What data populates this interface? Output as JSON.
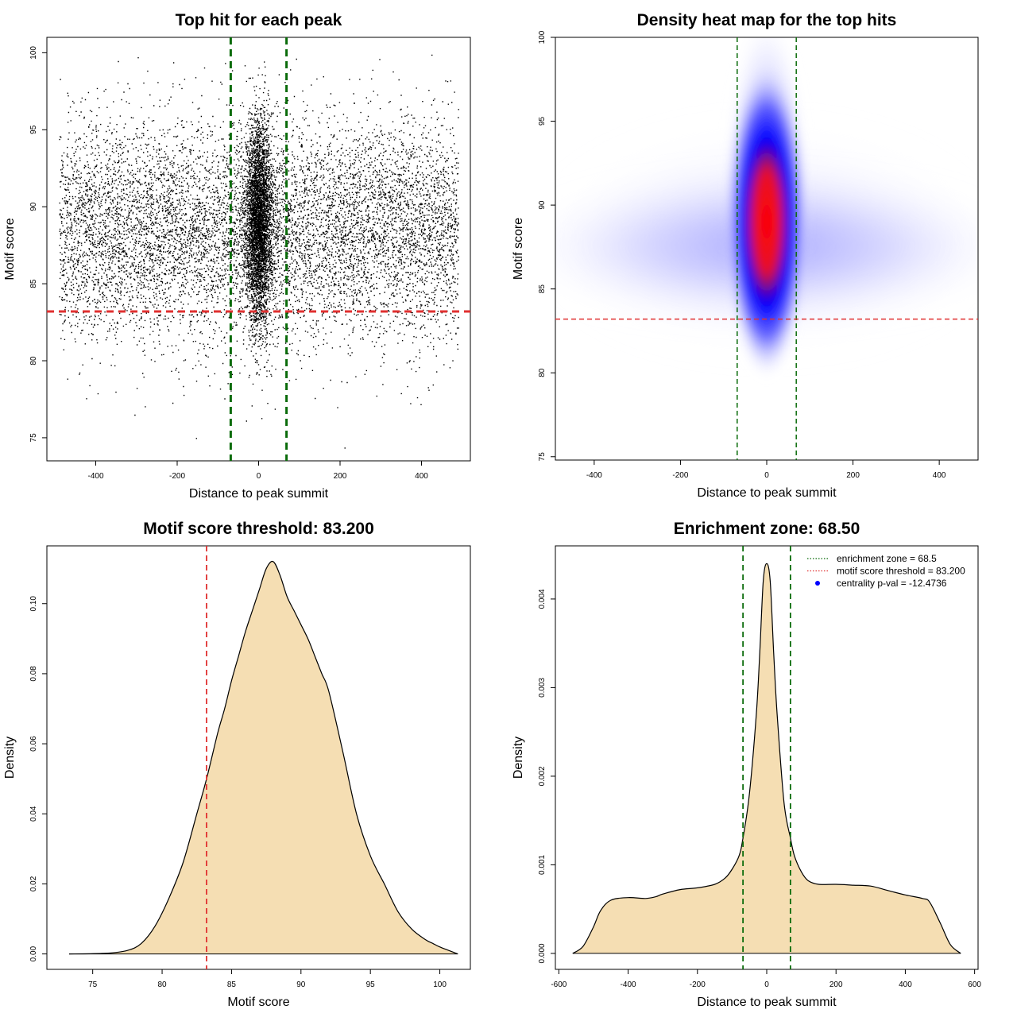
{
  "colors": {
    "threshold_line": "#e03030",
    "zone_line": "#0a6b0a",
    "density_fill": "#f5deb3",
    "heat_low": "#ffffff",
    "heat_mid": "#0000ff",
    "heat_high": "#ff0000",
    "point": "#000000"
  },
  "chart_data": [
    {
      "type": "scatter",
      "title": "Top hit for each peak",
      "xlabel": "Distance to peak summit",
      "ylabel": "Motif score",
      "xlim": [
        -520,
        520
      ],
      "ylim": [
        73.5,
        101
      ],
      "xticks": [
        -400,
        -200,
        0,
        200,
        400
      ],
      "yticks": [
        75,
        80,
        85,
        90,
        95,
        100
      ],
      "xtick_labels": [
        "-400",
        "-200",
        "0",
        "200",
        "400"
      ],
      "ytick_labels": [
        "75",
        "80",
        "85",
        "90",
        "95",
        "100"
      ],
      "background": {
        "x_range": [
          -490,
          490
        ],
        "y_mean": 88.5,
        "y_sd": 3.5
      },
      "central_cluster": {
        "x_sd": 16,
        "y_mean": 89,
        "y_sd": 3.2
      },
      "vlines": [
        -68.5,
        68.5
      ],
      "hline": 83.2,
      "grid": false
    },
    {
      "type": "heatmap",
      "title": "Density heat map for the top hits",
      "xlabel": "Distance to peak summit",
      "ylabel": "Motif score",
      "xlim": [
        -490,
        490
      ],
      "ylim": [
        74.8,
        100
      ],
      "xticks": [
        -400,
        -200,
        0,
        200,
        400
      ],
      "yticks": [
        75,
        80,
        85,
        90,
        95,
        100
      ],
      "xtick_labels": [
        "-400",
        "-200",
        "0",
        "200",
        "400"
      ],
      "ytick_labels": [
        "75",
        "80",
        "85",
        "90",
        "95",
        "100"
      ],
      "peak": {
        "x": 0,
        "y": 89
      },
      "vlines": [
        -68.5,
        68.5
      ],
      "hline": 83.2,
      "grid": false
    },
    {
      "type": "area",
      "title": "Motif score threshold: 83.200",
      "xlabel": "Motif score",
      "ylabel": "Density",
      "xlim": [
        71.7,
        102.2
      ],
      "ylim": [
        -0.0044,
        0.1165
      ],
      "xticks": [
        75,
        80,
        85,
        90,
        95,
        100
      ],
      "yticks": [
        0,
        0.02,
        0.04,
        0.06,
        0.08,
        0.1
      ],
      "xtick_labels": [
        "75",
        "80",
        "85",
        "90",
        "95",
        "100"
      ],
      "ytick_labels": [
        "0.00",
        "0.02",
        "0.04",
        "0.06",
        "0.08",
        "0.10"
      ],
      "x": [
        73.3,
        76,
        77.5,
        78.5,
        79.5,
        80.5,
        81.5,
        82.5,
        83.2,
        84,
        84.5,
        85,
        85.5,
        86,
        86.5,
        87,
        87.5,
        88,
        88.5,
        89,
        89.5,
        90,
        90.5,
        91,
        91.5,
        92,
        93,
        94,
        95,
        96,
        97,
        98,
        99,
        99.5,
        100,
        101.3
      ],
      "y": [
        0,
        0.0002,
        0.001,
        0.003,
        0.008,
        0.016,
        0.026,
        0.04,
        0.05,
        0.063,
        0.07,
        0.078,
        0.085,
        0.092,
        0.098,
        0.104,
        0.11,
        0.112,
        0.108,
        0.102,
        0.098,
        0.094,
        0.09,
        0.085,
        0.08,
        0.075,
        0.058,
        0.04,
        0.028,
        0.02,
        0.012,
        0.007,
        0.004,
        0.003,
        0.002,
        0
      ],
      "vline": 83.2,
      "grid": false
    },
    {
      "type": "area",
      "title": "Enrichment zone: 68.50",
      "xlabel": "Distance to peak summit",
      "ylabel": "Density",
      "xlim": [
        -610,
        610
      ],
      "ylim": [
        -0.00018,
        0.0046
      ],
      "xticks": [
        -600,
        -400,
        -200,
        0,
        200,
        400,
        600
      ],
      "yticks": [
        0,
        0.001,
        0.002,
        0.003,
        0.004
      ],
      "xtick_labels": [
        "-600",
        "-400",
        "-200",
        "0",
        "200",
        "400",
        "600"
      ],
      "ytick_labels": [
        "0.000",
        "0.001",
        "0.002",
        "0.003",
        "0.004"
      ],
      "x": [
        -560,
        -530,
        -500,
        -480,
        -450,
        -400,
        -350,
        -320,
        -300,
        -250,
        -200,
        -150,
        -120,
        -100,
        -80,
        -68.5,
        -50,
        -30,
        -20,
        -10,
        0,
        10,
        20,
        30,
        50,
        68.5,
        80,
        100,
        120,
        150,
        200,
        250,
        300,
        350,
        400,
        450,
        470,
        500,
        530,
        560
      ],
      "y": [
        0,
        8e-05,
        0.0003,
        0.00048,
        0.0006,
        0.00063,
        0.00062,
        0.00064,
        0.00067,
        0.00072,
        0.00074,
        0.00078,
        0.00085,
        0.00095,
        0.0011,
        0.0013,
        0.0018,
        0.0027,
        0.0034,
        0.0042,
        0.0044,
        0.0042,
        0.0034,
        0.0027,
        0.0017,
        0.0013,
        0.0011,
        0.00092,
        0.00082,
        0.00078,
        0.00078,
        0.00077,
        0.00076,
        0.00071,
        0.00066,
        0.00062,
        0.00058,
        0.00035,
        0.0001,
        0
      ],
      "vlines": [
        -68.5,
        68.5
      ],
      "legend": {
        "position": "top-right",
        "entries": [
          {
            "label": "enrichment zone = 68.5",
            "color": "#0a6b0a",
            "style": "dotted-line"
          },
          {
            "label": "motif score threshold = 83.200",
            "color": "#e03030",
            "style": "dotted-line"
          },
          {
            "label": "centrality p-val = -12.4736",
            "color": "#0000ff",
            "style": "point"
          }
        ]
      },
      "grid": false
    }
  ]
}
